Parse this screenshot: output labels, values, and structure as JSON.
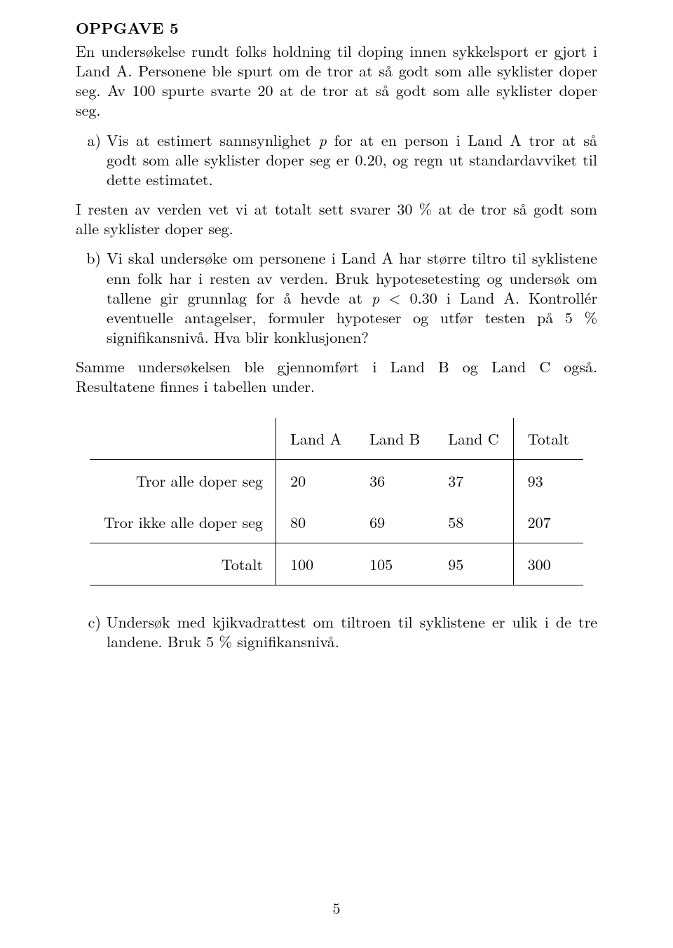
{
  "title": "OPPGAVE 5",
  "intro1": "En undersøkelse rundt folks holdning til doping innen sykkelsport er gjort i Land A. Personene ble spurt om de tror at så godt som alle syklister doper seg. Av 100 spurte svarte 20 at de tror at så godt som alle syklister doper seg.",
  "item_a_marker": "a)",
  "item_a_pre": "Vis at estimert sannsynlighet ",
  "item_a_var": "p",
  "item_a_post": " for at en person i Land A tror at så godt som alle syklister doper seg er 0.20, og regn ut standardavviket til dette estimatet.",
  "interlude": "I resten av verden vet vi at totalt sett svarer 30 % at de tror så godt som alle syklister doper seg.",
  "item_b_marker": "b)",
  "item_b_p1_pre": "Vi skal undersøke om personene i Land A har større tiltro til syklistene enn folk har i resten av verden. Bruk hypotesetesting og undersøk om tallene gir grunnlag for å hevde at ",
  "item_b_p1_var": "p",
  "item_b_p1_post": " < 0.30 i Land A. Kontrollér eventuelle antagelser, formuler hypoteser og utfør testen på 5 % signifikansnivå. Hva blir konklusjonen?",
  "interlude2": "Samme undersøkelsen ble gjennomført i Land B og Land C også. Resultatene finnes i tabellen under.",
  "table": {
    "columns": [
      "Land A",
      "Land B",
      "Land C",
      "Totalt"
    ],
    "rows": [
      {
        "label": "Tror alle doper seg",
        "cells": [
          "20",
          "36",
          "37",
          "93"
        ]
      },
      {
        "label": "Tror ikke alle doper seg",
        "cells": [
          "80",
          "69",
          "58",
          "207"
        ]
      }
    ],
    "totals": {
      "label": "Totalt",
      "cells": [
        "100",
        "105",
        "95",
        "300"
      ]
    }
  },
  "item_c_marker": "c)",
  "item_c_text": "Undersøk med kjikvadrattest om tiltroen til syklistene er ulik i de tre landene. Bruk 5 % signifikansnivå.",
  "pagenum": "5"
}
